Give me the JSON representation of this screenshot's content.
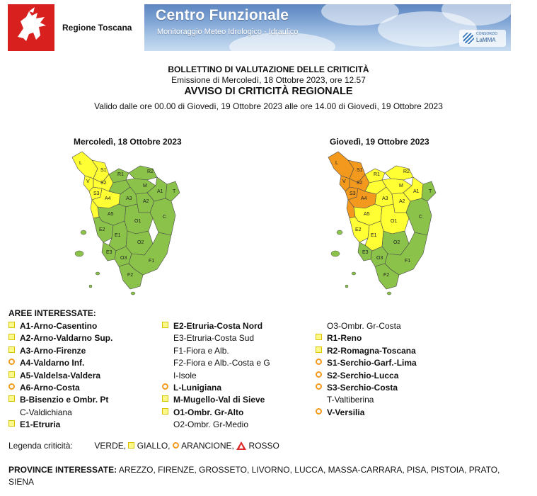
{
  "header": {
    "region_name": "Regione Toscana",
    "banner_title": "Centro Funzionale",
    "banner_subtitle": "Monitoraggio Meteo Idrologico - Idraulico",
    "lamma_small": "CONSORZIO",
    "lamma_name": "LaMMA"
  },
  "bulletin": {
    "title": "BOLLETTINO DI VALUTAZIONE DELLE CRITICITÀ",
    "emission": "Emissione di Mercoledì, 18 Ottobre 2023, ore 12.57",
    "subtitle": "AVVISO DI CRITICITÀ REGIONALE",
    "validity": "Valido dalle ore 00.00 di Giovedì, 19 Ottobre 2023 alle ore 14.00 di Giovedì, 19 Ottobre 2023"
  },
  "maps": {
    "left_title": "Mercoledì, 18 Ottobre 2023",
    "right_title": "Giovedì, 19 Ottobre 2023",
    "colors": {
      "verde": "#8bc34a",
      "giallo": "#ffff33",
      "arancione": "#f39a1e",
      "rosso": "#e02a2a"
    },
    "zone_labels": [
      "L",
      "S1",
      "S2",
      "S3",
      "V",
      "A4",
      "A5",
      "R2",
      "M",
      "R1",
      "A1",
      "A3",
      "A2",
      "T",
      "O1",
      "C",
      "E2",
      "E1",
      "O2",
      "E3",
      "O3",
      "F1",
      "F2",
      "I"
    ]
  },
  "areas": {
    "title": "AREE INTERESSATE:",
    "columns": [
      [
        {
          "icon": "yellow-square",
          "label": "A1-Arno-Casentino",
          "bold": true
        },
        {
          "icon": "yellow-square",
          "label": "A2-Arno-Valdarno Sup.",
          "bold": true
        },
        {
          "icon": "yellow-square",
          "label": "A3-Arno-Firenze",
          "bold": true
        },
        {
          "icon": "orange-circle",
          "label": "A4-Valdarno Inf.",
          "bold": true
        },
        {
          "icon": "yellow-square",
          "label": "A5-Valdelsa-Valdera",
          "bold": true
        },
        {
          "icon": "orange-circle",
          "label": "A6-Arno-Costa",
          "bold": true
        },
        {
          "icon": "yellow-square",
          "label": "B-Bisenzio e Ombr. Pt",
          "bold": true
        },
        {
          "icon": "",
          "label": "C-Valdichiana",
          "bold": false
        },
        {
          "icon": "yellow-square",
          "label": "E1-Etruria",
          "bold": true
        }
      ],
      [
        {
          "icon": "yellow-square",
          "label": "E2-Etruria-Costa Nord",
          "bold": true
        },
        {
          "icon": "",
          "label": "E3-Etruria-Costa Sud",
          "bold": false
        },
        {
          "icon": "",
          "label": "F1-Fiora e Alb.",
          "bold": false
        },
        {
          "icon": "",
          "label": "F2-Fiora e Alb.-Costa e G",
          "bold": false
        },
        {
          "icon": "",
          "label": "I-Isole",
          "bold": false
        },
        {
          "icon": "orange-circle",
          "label": "L-Lunigiana",
          "bold": true
        },
        {
          "icon": "yellow-square",
          "label": "M-Mugello-Val di Sieve",
          "bold": true
        },
        {
          "icon": "yellow-square",
          "label": "O1-Ombr. Gr-Alto",
          "bold": true
        },
        {
          "icon": "",
          "label": "O2-Ombr. Gr-Medio",
          "bold": false
        }
      ],
      [
        {
          "icon": "",
          "label": "O3-Ombr. Gr-Costa",
          "bold": false
        },
        {
          "icon": "yellow-square",
          "label": "R1-Reno",
          "bold": true
        },
        {
          "icon": "yellow-square",
          "label": "R2-Romagna-Toscana",
          "bold": true
        },
        {
          "icon": "orange-circle",
          "label": "S1-Serchio-Garf.-Lima",
          "bold": true
        },
        {
          "icon": "orange-circle",
          "label": "S2-Serchio-Lucca",
          "bold": true
        },
        {
          "icon": "orange-circle",
          "label": "S3-Serchio-Costa",
          "bold": true
        },
        {
          "icon": "",
          "label": "T-Valtiberina",
          "bold": false
        },
        {
          "icon": "orange-circle",
          "label": "V-Versilia",
          "bold": true
        }
      ]
    ]
  },
  "legend": {
    "label": "Legenda criticità:",
    "verde": "VERDE,",
    "giallo": "GIALLO,",
    "arancione": "ARANCIONE,",
    "rosso": "ROSSO"
  },
  "provinces": {
    "label": "PROVINCE INTERESSATE:",
    "list": "AREZZO, FIRENZE, GROSSETO, LIVORNO, LUCCA, MASSA-CARRARA, PISA, PISTOIA, PRATO, SIENA"
  }
}
